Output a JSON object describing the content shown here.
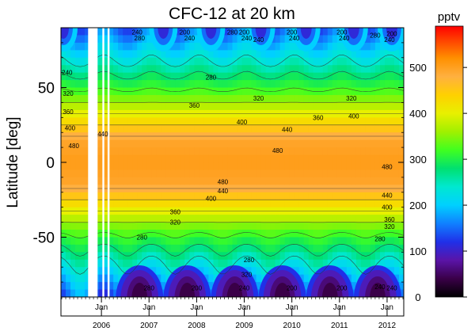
{
  "chart_data": {
    "type": "heatmap",
    "title": "CFC-12 at 20 km",
    "ylabel": "Latitude [deg]",
    "xlabel": "",
    "ylim": [
      -90,
      90
    ],
    "xlim": [
      2005.15,
      2012.35
    ],
    "y_ticks": [
      {
        "value": 50,
        "label": "50"
      },
      {
        "value": 0,
        "label": "0"
      },
      {
        "value": -50,
        "label": "-50"
      }
    ],
    "x_month_ticks": [
      {
        "value": 2006.0,
        "label": "Jan"
      },
      {
        "value": 2007.0,
        "label": "Jan"
      },
      {
        "value": 2008.0,
        "label": "Jan"
      },
      {
        "value": 2009.0,
        "label": "Jan"
      },
      {
        "value": 2010.0,
        "label": "Jan"
      },
      {
        "value": 2011.0,
        "label": "Jan"
      },
      {
        "value": 2012.0,
        "label": "Jan"
      }
    ],
    "x_year_labels": [
      {
        "value": 2006.0,
        "label": "2006"
      },
      {
        "value": 2007.0,
        "label": "2007"
      },
      {
        "value": 2008.0,
        "label": "2008"
      },
      {
        "value": 2009.0,
        "label": "2009"
      },
      {
        "value": 2010.0,
        "label": "2010"
      },
      {
        "value": 2011.0,
        "label": "2011"
      },
      {
        "value": 2012.0,
        "label": "2012"
      }
    ],
    "data_gaps": [
      [
        2005.72,
        2005.92
      ],
      [
        2006.02,
        2006.06
      ],
      [
        2006.13,
        2006.17
      ]
    ],
    "colorbar": {
      "label": "pptv",
      "range": [
        0,
        590
      ],
      "ticks": [
        {
          "value": 0,
          "label": "0"
        },
        {
          "value": 100,
          "label": "100"
        },
        {
          "value": 200,
          "label": "200"
        },
        {
          "value": 300,
          "label": "300"
        },
        {
          "value": 400,
          "label": "400"
        },
        {
          "value": 500,
          "label": "500"
        }
      ],
      "stops": [
        {
          "value": 0,
          "color": "#000000"
        },
        {
          "value": 40,
          "color": "#3a0048"
        },
        {
          "value": 80,
          "color": "#5a14a8"
        },
        {
          "value": 120,
          "color": "#2030e8"
        },
        {
          "value": 160,
          "color": "#1080ff"
        },
        {
          "value": 200,
          "color": "#00d0ff"
        },
        {
          "value": 240,
          "color": "#00e8d0"
        },
        {
          "value": 280,
          "color": "#00e070"
        },
        {
          "value": 320,
          "color": "#40ff20"
        },
        {
          "value": 360,
          "color": "#a0f000"
        },
        {
          "value": 400,
          "color": "#e8f000"
        },
        {
          "value": 440,
          "color": "#ffd000"
        },
        {
          "value": 480,
          "color": "#ffb040"
        },
        {
          "value": 520,
          "color": "#ff9000"
        },
        {
          "value": 560,
          "color": "#ff4000"
        },
        {
          "value": 590,
          "color": "#ff0000"
        }
      ]
    },
    "contour_labels": [
      {
        "x": 2005.28,
        "lat": 60,
        "label": "240"
      },
      {
        "x": 2005.3,
        "lat": 46,
        "label": "320"
      },
      {
        "x": 2005.3,
        "lat": 34,
        "label": "360"
      },
      {
        "x": 2005.34,
        "lat": 23,
        "label": "400"
      },
      {
        "x": 2005.42,
        "lat": 11,
        "label": "480"
      },
      {
        "x": 2006.03,
        "lat": 19,
        "label": "440"
      },
      {
        "x": 2006.75,
        "lat": 87,
        "label": "240"
      },
      {
        "x": 2006.8,
        "lat": 83,
        "label": "280"
      },
      {
        "x": 2007.75,
        "lat": 87,
        "label": "200"
      },
      {
        "x": 2007.85,
        "lat": 83,
        "label": "240"
      },
      {
        "x": 2008.3,
        "lat": 57,
        "label": "280"
      },
      {
        "x": 2007.95,
        "lat": 38,
        "label": "360"
      },
      {
        "x": 2008.75,
        "lat": 87,
        "label": "280"
      },
      {
        "x": 2009.0,
        "lat": 87,
        "label": "200"
      },
      {
        "x": 2009.05,
        "lat": 83,
        "label": "240"
      },
      {
        "x": 2009.3,
        "lat": 82,
        "label": "240"
      },
      {
        "x": 2009.3,
        "lat": 43,
        "label": "320"
      },
      {
        "x": 2008.95,
        "lat": 27,
        "label": "400"
      },
      {
        "x": 2010.0,
        "lat": 87,
        "label": "200"
      },
      {
        "x": 2010.05,
        "lat": 83,
        "label": "240"
      },
      {
        "x": 2010.55,
        "lat": 30,
        "label": "360"
      },
      {
        "x": 2009.9,
        "lat": 22,
        "label": "440"
      },
      {
        "x": 2009.7,
        "lat": 8,
        "label": "480"
      },
      {
        "x": 2011.05,
        "lat": 87,
        "label": "200"
      },
      {
        "x": 2011.1,
        "lat": 83,
        "label": "240"
      },
      {
        "x": 2011.25,
        "lat": 43,
        "label": "320"
      },
      {
        "x": 2011.3,
        "lat": 31,
        "label": "400"
      },
      {
        "x": 2011.75,
        "lat": 85,
        "label": "280"
      },
      {
        "x": 2012.1,
        "lat": 86,
        "label": "200"
      },
      {
        "x": 2012.05,
        "lat": 82,
        "label": "240"
      },
      {
        "x": 2008.55,
        "lat": -13,
        "label": "480"
      },
      {
        "x": 2008.55,
        "lat": -19,
        "label": "440"
      },
      {
        "x": 2008.3,
        "lat": -24,
        "label": "400"
      },
      {
        "x": 2007.55,
        "lat": -33,
        "label": "360"
      },
      {
        "x": 2007.55,
        "lat": -40,
        "label": "320"
      },
      {
        "x": 2006.85,
        "lat": -50,
        "label": "280"
      },
      {
        "x": 2012.0,
        "lat": -3,
        "label": "480"
      },
      {
        "x": 2012.0,
        "lat": -22,
        "label": "440"
      },
      {
        "x": 2012.0,
        "lat": -30,
        "label": "400"
      },
      {
        "x": 2012.05,
        "lat": -38,
        "label": "360"
      },
      {
        "x": 2012.05,
        "lat": -43,
        "label": "320"
      },
      {
        "x": 2011.85,
        "lat": -51,
        "label": "280"
      },
      {
        "x": 2009.1,
        "lat": -65,
        "label": "280"
      },
      {
        "x": 2009.05,
        "lat": -75,
        "label": "320"
      },
      {
        "x": 2009.0,
        "lat": -84,
        "label": "240"
      },
      {
        "x": 2007.0,
        "lat": -84,
        "label": "280"
      },
      {
        "x": 2008.0,
        "lat": -84,
        "label": "200"
      },
      {
        "x": 2010.0,
        "lat": -84,
        "label": "200"
      },
      {
        "x": 2011.05,
        "lat": -84,
        "label": "200"
      },
      {
        "x": 2011.85,
        "lat": -83,
        "label": "240"
      },
      {
        "x": 2012.1,
        "lat": -84,
        "label": "240"
      }
    ]
  }
}
